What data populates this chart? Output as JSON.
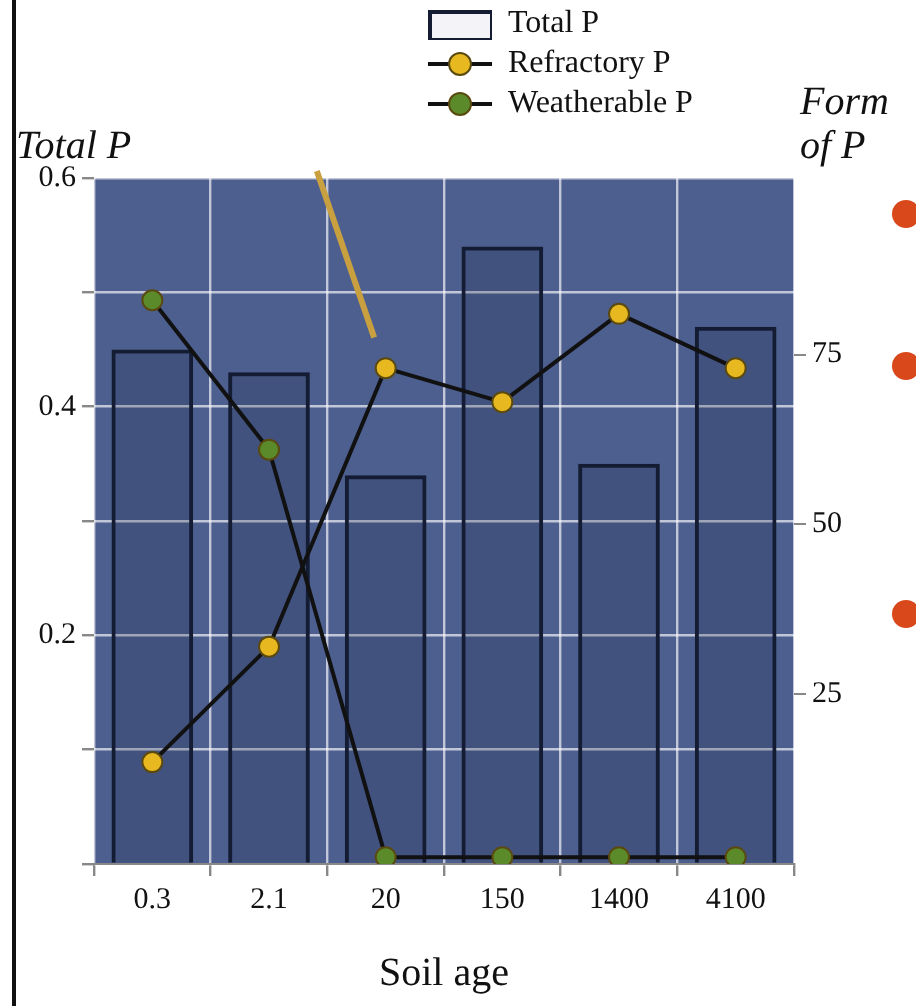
{
  "chart_data": {
    "type": "bar",
    "xlabel": "Soil age",
    "ylabel": "Total P",
    "y2label": "Form of P",
    "categories": [
      "0.3",
      "2.1",
      "20",
      "150",
      "1400",
      "4100"
    ],
    "series": [
      {
        "name": "Total P",
        "color": "#141c33",
        "values": [
          0.45,
          0.43,
          0.34,
          0.54,
          0.35,
          0.47
        ]
      },
      {
        "name": "Refractory P",
        "type": "line",
        "axis": "y2",
        "color": "#e8b820",
        "values": [
          15,
          32,
          73,
          68,
          81,
          73
        ]
      },
      {
        "name": "Weatherable P",
        "type": "line",
        "axis": "y2",
        "color": "#5a8a2a",
        "values": [
          83,
          61,
          1,
          1,
          1,
          1
        ]
      }
    ],
    "ylim": [
      0,
      0.6
    ],
    "yticks": [
      {
        "value": 0,
        "label": null
      },
      {
        "value": 0.1,
        "label": null
      },
      0.2,
      {
        "value": 0.3,
        "label": null
      },
      0.4,
      {
        "value": 0.5,
        "label": null
      },
      0.6
    ],
    "y2lim": [
      0,
      101
    ],
    "y2ticks": [
      25,
      50,
      75
    ],
    "grid": true,
    "legend": "top right",
    "marker": "circle"
  }
}
